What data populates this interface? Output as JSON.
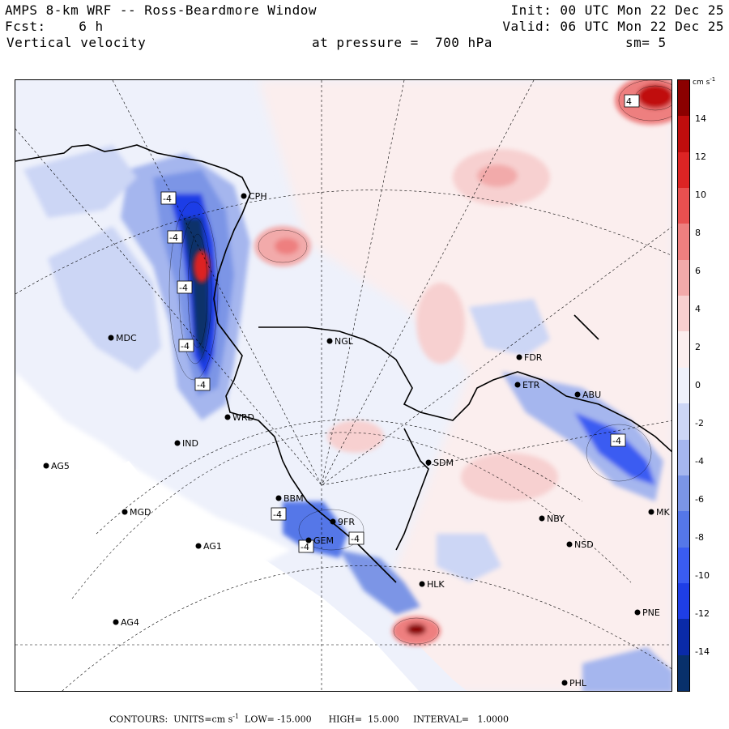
{
  "header": {
    "line1_left": "AMPS 8-km WRF -- Ross-Beardmore Window",
    "line1_right": "Init: 00 UTC Mon 22 Dec 25",
    "line2_left": "Fcst:    6 h",
    "line2_right": "Valid: 06 UTC Mon 22 Dec 25",
    "line3_left": "Vertical velocity",
    "line3_mid": "at pressure =  700 hPa",
    "line3_right": "sm= 5"
  },
  "colorbar": {
    "unit": "cm s",
    "unit_exp": "-1",
    "ticks": [
      "14",
      "12",
      "10",
      "8",
      "6",
      "4",
      "2",
      "0",
      "-2",
      "-4",
      "-6",
      "-8",
      "-10",
      "-12",
      "-14"
    ],
    "colors": [
      "#08306b",
      "#0a2aa8",
      "#1e3ee6",
      "#3a5cf2",
      "#5577e8",
      "#7b95e6",
      "#a5b6ee",
      "#ccd6f5",
      "#eef1fb",
      "#fbeeee",
      "#f7d0d0",
      "#f2aaaa",
      "#ee7f7f",
      "#e85050",
      "#dd2424",
      "#c00d0d",
      "#8b0000"
    ]
  },
  "stations": [
    {
      "name": "CPH"
    },
    {
      "name": "MDC"
    },
    {
      "name": "NGL"
    },
    {
      "name": "FDR"
    },
    {
      "name": "ETR"
    },
    {
      "name": "ABU"
    },
    {
      "name": "WRD"
    },
    {
      "name": "IND"
    },
    {
      "name": "AG5"
    },
    {
      "name": "SDM"
    },
    {
      "name": "BBM"
    },
    {
      "name": "MGD"
    },
    {
      "name": "9FR"
    },
    {
      "name": "GEM"
    },
    {
      "name": "AG1"
    },
    {
      "name": "NBY"
    },
    {
      "name": "NSD"
    },
    {
      "name": "HLK"
    },
    {
      "name": "AG4"
    },
    {
      "name": "PNE"
    },
    {
      "name": "PHL"
    },
    {
      "name": "MK"
    }
  ],
  "contour_labels": [
    "-4",
    "-4",
    "-4",
    "-4",
    "-4",
    "-4",
    "-4",
    "-4",
    "-4",
    "4"
  ],
  "footer": {
    "contours": "CONTOURS:  UNITS=cm s",
    "unit_exp": "-1",
    "rest": "  LOW= -15.000      HIGH=  15.000     INTERVAL=   1.0000"
  }
}
